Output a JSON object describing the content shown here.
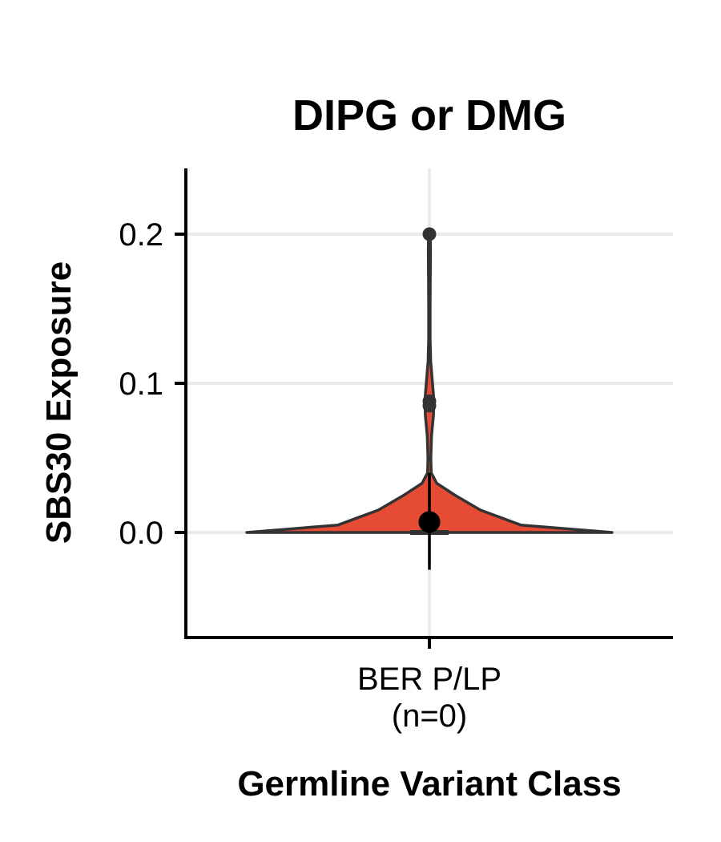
{
  "chart_data": {
    "type": "violin",
    "title": "DIPG or DMG",
    "xlabel": "Germline Variant Class",
    "ylabel": "SBS30 Exposure",
    "categories": [
      "BER P/LP\n(n=0)"
    ],
    "category_lines": [
      "BER P/LP",
      "(n=0)"
    ],
    "ylim": [
      -0.07,
      0.245
    ],
    "yticks": [
      0.0,
      0.1,
      0.2
    ],
    "ytick_labels": [
      "0.0",
      "0.1",
      "0.2"
    ],
    "grid": true,
    "violin": {
      "fill": "#e64b35",
      "stroke": "#333333",
      "density_profile": [
        {
          "y": 0.0,
          "half_width": 1.0
        },
        {
          "y": 0.005,
          "half_width": 0.5
        },
        {
          "y": 0.015,
          "half_width": 0.28
        },
        {
          "y": 0.025,
          "half_width": 0.14
        },
        {
          "y": 0.033,
          "half_width": 0.04
        },
        {
          "y": 0.04,
          "half_width": 0.01
        },
        {
          "y": 0.05,
          "half_width": 0.008
        },
        {
          "y": 0.065,
          "half_width": 0.012
        },
        {
          "y": 0.078,
          "half_width": 0.022
        },
        {
          "y": 0.088,
          "half_width": 0.025
        },
        {
          "y": 0.1,
          "half_width": 0.017
        },
        {
          "y": 0.115,
          "half_width": 0.007
        },
        {
          "y": 0.13,
          "half_width": 0.004
        },
        {
          "y": 0.15,
          "half_width": 0.004
        },
        {
          "y": 0.17,
          "half_width": 0.005
        },
        {
          "y": 0.19,
          "half_width": 0.006
        },
        {
          "y": 0.2,
          "half_width": 0.004
        }
      ]
    },
    "outliers": [
      0.2,
      0.088,
      0.085
    ],
    "median_box": {
      "q1": 0.0,
      "median": 0.0,
      "q3": 0.0
    },
    "summary": {
      "mean": 0.007,
      "lower": -0.025,
      "upper": 0.04
    }
  }
}
